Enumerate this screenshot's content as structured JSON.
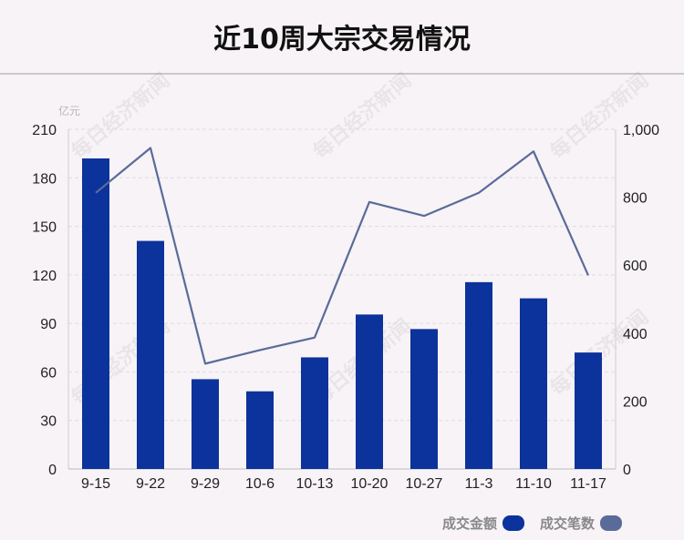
{
  "title": "近10周大宗交易情况",
  "watermark_text": "每日经济新闻",
  "chart_data": {
    "type": "bar+line",
    "categories": [
      "9-15",
      "9-22",
      "9-29",
      "10-6",
      "10-13",
      "10-20",
      "10-27",
      "11-3",
      "11-10",
      "11-17"
    ],
    "left_axis": {
      "unit": "亿元",
      "ylim": [
        0,
        210
      ],
      "ticks": [
        0,
        30,
        60,
        90,
        120,
        150,
        180,
        210
      ],
      "tick_labels": [
        "0",
        "30",
        "60",
        "90",
        "120",
        "150",
        "180",
        "210"
      ]
    },
    "right_axis": {
      "ylim": [
        0,
        1000
      ],
      "ticks": [
        0,
        200,
        400,
        600,
        800,
        1000
      ],
      "tick_labels": [
        "0",
        "200",
        "400",
        "600",
        "800",
        "1,000"
      ]
    },
    "series": [
      {
        "name": "成交金额",
        "type": "bar",
        "axis": "left",
        "color": "#0c329b",
        "values": [
          192,
          141,
          55.5,
          48,
          69,
          95.5,
          86.5,
          115.5,
          105.5,
          72
        ]
      },
      {
        "name": "成交笔数",
        "type": "line",
        "axis": "right",
        "color": "#5a6b9a",
        "values": [
          813,
          945,
          310,
          350,
          387,
          786,
          745,
          813,
          935,
          570
        ]
      }
    ],
    "grid": true,
    "legend_position": "bottom-right"
  }
}
